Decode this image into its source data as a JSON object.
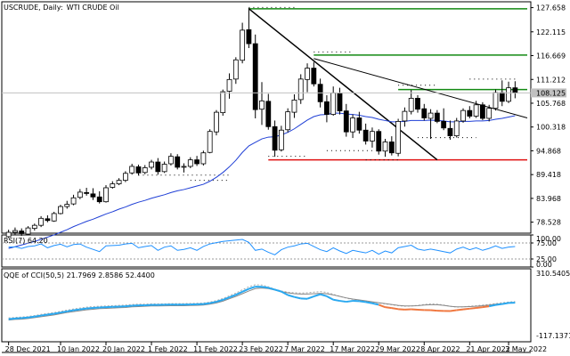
{
  "header": {
    "symbol": "USCRUDE, Daily:",
    "name": "WTI CRUDE Oil"
  },
  "price_axis": {
    "labels": [
      "127.658",
      "122.115",
      "116.669",
      "111.212",
      "105.768",
      "100.318",
      "94.868",
      "89.418",
      "83.968",
      "78.528"
    ],
    "current_price_label": "108.125"
  },
  "rsi_panel": {
    "label": "RSI(7) 64.20",
    "axis_labels": [
      "100.00",
      "75.00",
      "25.00",
      "0.00"
    ]
  },
  "qqe_panel": {
    "label": "QQE of CCI(50,5) 21.7969 2.8586 52.4400",
    "axis_labels": [
      "310.5405",
      "-117.1371"
    ]
  },
  "date_axis": {
    "labels": [
      "28 Dec 2021",
      "10 Jan 2022",
      "20 Jan 2022",
      "1 Feb 2022",
      "11 Feb 2022",
      "23 Feb 2022",
      "7 Mar 2022",
      "17 Mar 2022",
      "29 Mar 2022",
      "8 Apr 2022",
      "21 Apr 2022",
      "3 May 2022"
    ]
  },
  "colors": {
    "bullish": "#ffffff",
    "bearish": "#000000",
    "ma_line": "#1f3fd6",
    "resistance": "#138a13",
    "support": "#e01010",
    "rsi_line": "#1e90ff",
    "qqe_up": "#29a8f0",
    "qqe_down": "#f07840",
    "qqe_slow": "#888888"
  },
  "chart_data": [
    {
      "type": "candlestick",
      "title": "USCRUDE, Daily: WTI CRUDE Oil",
      "ylim": [
        76.0,
        129.0
      ],
      "y_ticks": [
        127.658,
        122.115,
        116.669,
        111.212,
        105.768,
        100.318,
        94.868,
        89.418,
        83.968,
        78.528
      ],
      "current_price": 108.125,
      "candles": [
        {
          "o": 75.2,
          "h": 76.8,
          "l": 74.9,
          "c": 76.2
        },
        {
          "o": 76.2,
          "h": 77.3,
          "l": 75.7,
          "c": 76.6
        },
        {
          "o": 76.5,
          "h": 77.1,
          "l": 75.4,
          "c": 75.9
        },
        {
          "o": 75.8,
          "h": 77.6,
          "l": 75.5,
          "c": 77.2
        },
        {
          "o": 77.1,
          "h": 78.2,
          "l": 76.6,
          "c": 77.8
        },
        {
          "o": 77.8,
          "h": 79.9,
          "l": 77.4,
          "c": 79.4
        },
        {
          "o": 79.3,
          "h": 80.1,
          "l": 78.5,
          "c": 78.9
        },
        {
          "o": 78.8,
          "h": 80.9,
          "l": 78.6,
          "c": 80.5
        },
        {
          "o": 80.5,
          "h": 82.5,
          "l": 80.3,
          "c": 82.1
        },
        {
          "o": 82.1,
          "h": 83.4,
          "l": 81.6,
          "c": 82.6
        },
        {
          "o": 82.7,
          "h": 84.8,
          "l": 82.4,
          "c": 84.1
        },
        {
          "o": 84.2,
          "h": 86.1,
          "l": 83.8,
          "c": 85.4
        },
        {
          "o": 85.3,
          "h": 86.4,
          "l": 84.6,
          "c": 85.1
        },
        {
          "o": 85.0,
          "h": 86.3,
          "l": 83.6,
          "c": 84.3
        },
        {
          "o": 84.3,
          "h": 85.6,
          "l": 82.8,
          "c": 83.2
        },
        {
          "o": 83.2,
          "h": 87.0,
          "l": 83.0,
          "c": 86.4
        },
        {
          "o": 86.5,
          "h": 87.9,
          "l": 86.2,
          "c": 87.3
        },
        {
          "o": 87.3,
          "h": 88.6,
          "l": 87.0,
          "c": 88.1
        },
        {
          "o": 88.1,
          "h": 90.2,
          "l": 87.7,
          "c": 89.7
        },
        {
          "o": 89.8,
          "h": 91.9,
          "l": 89.4,
          "c": 91.3
        },
        {
          "o": 91.2,
          "h": 91.7,
          "l": 89.2,
          "c": 89.8
        },
        {
          "o": 89.9,
          "h": 91.6,
          "l": 89.5,
          "c": 91.0
        },
        {
          "o": 91.1,
          "h": 92.8,
          "l": 90.6,
          "c": 92.3
        },
        {
          "o": 92.3,
          "h": 93.2,
          "l": 89.4,
          "c": 90.1
        },
        {
          "o": 90.1,
          "h": 92.4,
          "l": 89.8,
          "c": 91.8
        },
        {
          "o": 91.9,
          "h": 94.3,
          "l": 91.5,
          "c": 93.6
        },
        {
          "o": 93.5,
          "h": 94.1,
          "l": 90.6,
          "c": 91.1
        },
        {
          "o": 91.2,
          "h": 92.0,
          "l": 89.9,
          "c": 91.3
        },
        {
          "o": 91.3,
          "h": 93.4,
          "l": 90.9,
          "c": 92.8
        },
        {
          "o": 92.8,
          "h": 93.7,
          "l": 91.4,
          "c": 91.9
        },
        {
          "o": 91.9,
          "h": 94.9,
          "l": 91.5,
          "c": 94.4
        },
        {
          "o": 94.5,
          "h": 99.8,
          "l": 94.3,
          "c": 99.3
        },
        {
          "o": 99.2,
          "h": 104.2,
          "l": 98.4,
          "c": 103.7
        },
        {
          "o": 103.6,
          "h": 108.9,
          "l": 102.9,
          "c": 108.4
        },
        {
          "o": 108.5,
          "h": 112.6,
          "l": 106.8,
          "c": 111.2
        },
        {
          "o": 111.3,
          "h": 116.3,
          "l": 110.2,
          "c": 115.7
        },
        {
          "o": 115.6,
          "h": 124.2,
          "l": 114.9,
          "c": 122.5
        },
        {
          "o": 122.6,
          "h": 127.6,
          "l": 118.4,
          "c": 119.4
        },
        {
          "o": 119.4,
          "h": 121.5,
          "l": 102.3,
          "c": 104.3
        },
        {
          "o": 104.4,
          "h": 110.6,
          "l": 100.8,
          "c": 106.3
        },
        {
          "o": 106.2,
          "h": 107.9,
          "l": 99.7,
          "c": 100.4
        },
        {
          "o": 100.4,
          "h": 101.8,
          "l": 93.5,
          "c": 95.0
        },
        {
          "o": 95.1,
          "h": 100.6,
          "l": 94.7,
          "c": 99.6
        },
        {
          "o": 99.7,
          "h": 104.6,
          "l": 99.1,
          "c": 103.8
        },
        {
          "o": 103.7,
          "h": 107.8,
          "l": 102.4,
          "c": 106.5
        },
        {
          "o": 106.6,
          "h": 112.4,
          "l": 105.6,
          "c": 111.3
        },
        {
          "o": 111.2,
          "h": 114.9,
          "l": 108.3,
          "c": 113.8
        },
        {
          "o": 113.8,
          "h": 115.2,
          "l": 109.6,
          "c": 110.2
        },
        {
          "o": 110.1,
          "h": 111.4,
          "l": 104.8,
          "c": 106.1
        },
        {
          "o": 106.1,
          "h": 107.6,
          "l": 101.4,
          "c": 103.2
        },
        {
          "o": 103.2,
          "h": 109.6,
          "l": 102.9,
          "c": 108.1
        },
        {
          "o": 108.0,
          "h": 109.3,
          "l": 103.2,
          "c": 104.0
        },
        {
          "o": 104.0,
          "h": 105.6,
          "l": 98.1,
          "c": 99.2
        },
        {
          "o": 99.2,
          "h": 103.2,
          "l": 97.8,
          "c": 102.4
        },
        {
          "o": 102.4,
          "h": 103.8,
          "l": 98.8,
          "c": 99.6
        },
        {
          "o": 99.6,
          "h": 101.1,
          "l": 96.3,
          "c": 97.1
        },
        {
          "o": 97.1,
          "h": 100.2,
          "l": 95.6,
          "c": 99.3
        },
        {
          "o": 99.3,
          "h": 99.8,
          "l": 94.0,
          "c": 94.8
        },
        {
          "o": 94.8,
          "h": 97.6,
          "l": 93.5,
          "c": 96.9
        },
        {
          "o": 96.9,
          "h": 98.2,
          "l": 93.8,
          "c": 94.4
        },
        {
          "o": 94.3,
          "h": 102.2,
          "l": 93.6,
          "c": 101.6
        },
        {
          "o": 101.7,
          "h": 104.8,
          "l": 100.4,
          "c": 103.9
        },
        {
          "o": 103.9,
          "h": 108.8,
          "l": 103.2,
          "c": 106.9
        },
        {
          "o": 106.9,
          "h": 107.6,
          "l": 103.6,
          "c": 104.4
        },
        {
          "o": 104.5,
          "h": 105.6,
          "l": 101.8,
          "c": 102.4
        },
        {
          "o": 102.3,
          "h": 104.4,
          "l": 97.6,
          "c": 103.5
        },
        {
          "o": 103.5,
          "h": 104.2,
          "l": 101.2,
          "c": 101.6
        },
        {
          "o": 101.6,
          "h": 104.6,
          "l": 99.6,
          "c": 100.1
        },
        {
          "o": 100.0,
          "h": 101.8,
          "l": 97.4,
          "c": 98.3
        },
        {
          "o": 98.3,
          "h": 102.4,
          "l": 97.9,
          "c": 101.7
        },
        {
          "o": 101.7,
          "h": 104.6,
          "l": 101.3,
          "c": 104.1
        },
        {
          "o": 104.1,
          "h": 105.1,
          "l": 102.3,
          "c": 102.8
        },
        {
          "o": 102.8,
          "h": 106.3,
          "l": 102.4,
          "c": 105.4
        },
        {
          "o": 105.4,
          "h": 106.0,
          "l": 101.9,
          "c": 102.3
        },
        {
          "o": 102.3,
          "h": 105.4,
          "l": 101.6,
          "c": 104.6
        },
        {
          "o": 104.6,
          "h": 108.9,
          "l": 104.1,
          "c": 108.2
        },
        {
          "o": 108.2,
          "h": 111.0,
          "l": 105.1,
          "c": 106.2
        },
        {
          "o": 106.2,
          "h": 110.7,
          "l": 105.8,
          "c": 109.3
        },
        {
          "o": 109.3,
          "h": 110.8,
          "l": 106.9,
          "c": 108.1
        }
      ],
      "moving_average": [
        72.5,
        72.9,
        73.3,
        73.7,
        74.1,
        74.6,
        75.1,
        75.6,
        76.2,
        76.8,
        77.5,
        78.1,
        78.7,
        79.2,
        79.8,
        80.4,
        80.9,
        81.5,
        82.0,
        82.6,
        83.1,
        83.5,
        84.0,
        84.4,
        84.8,
        85.3,
        85.7,
        86.0,
        86.4,
        86.8,
        87.2,
        87.9,
        88.8,
        89.9,
        91.2,
        92.7,
        94.5,
        96.0,
        96.8,
        97.6,
        98.0,
        98.1,
        98.5,
        99.1,
        99.9,
        100.9,
        101.9,
        102.7,
        103.1,
        103.2,
        103.5,
        103.5,
        103.3,
        103.2,
        103.0,
        102.7,
        102.5,
        102.1,
        101.8,
        101.5,
        101.5,
        101.6,
        101.8,
        101.8,
        101.8,
        101.9,
        101.8,
        101.7,
        101.5,
        101.5,
        101.6,
        101.6,
        101.7,
        101.7,
        101.8,
        102.1,
        102.3,
        102.6,
        102.9
      ],
      "lines": {
        "resistance_1": 127.4,
        "resistance_2": 116.8,
        "resistance_3": 108.9,
        "support": 92.8,
        "upper_dotted": [
          127.7,
          117.5,
          109.9,
          111.3
        ],
        "lower_dotted": [
          89.3,
          88.1,
          93.6,
          94.9,
          92.8,
          97.9
        ]
      }
    },
    {
      "type": "line",
      "title": "RSI(7) 64.20",
      "ylim": [
        0,
        100
      ],
      "y_ticks": [
        100,
        75,
        25,
        0
      ],
      "levels": [
        75,
        25
      ],
      "values": [
        62,
        63,
        58,
        64,
        66,
        72,
        60,
        67,
        71,
        63,
        70,
        72,
        62,
        55,
        48,
        66,
        67,
        68,
        72,
        74,
        60,
        64,
        67,
        52,
        62,
        66,
        52,
        55,
        60,
        52,
        64,
        72,
        76,
        80,
        82,
        84,
        86,
        77,
        52,
        56,
        46,
        38,
        54,
        62,
        66,
        72,
        74,
        64,
        54,
        48,
        60,
        50,
        42,
        52,
        48,
        44,
        52,
        40,
        50,
        44,
        60,
        64,
        68,
        56,
        52,
        56,
        52,
        48,
        44,
        56,
        62,
        54,
        60,
        52,
        58,
        66,
        58,
        62,
        64
      ]
    },
    {
      "type": "line",
      "title": "QQE of CCI(50,5) 21.7969 2.8586 52.4400",
      "ylim": [
        -117.1371,
        310.5405
      ],
      "y_ticks": [
        310.5405,
        -117.1371
      ],
      "series": [
        {
          "values": [
            18,
            22,
            24,
            28,
            34,
            42,
            48,
            54,
            62,
            70,
            78,
            84,
            90,
            94,
            96,
            98,
            100,
            102,
            104,
            108,
            110,
            110,
            112,
            112,
            112,
            114,
            114,
            114,
            115,
            116,
            118,
            124,
            134,
            148,
            166,
            184,
            206,
            226,
            240,
            238,
            226,
            210,
            198,
            190,
            186,
            184,
            186,
            190,
            194,
            188,
            176,
            162,
            150,
            142,
            136,
            130,
            124,
            118,
            112,
            106,
            100,
            96,
            98,
            102,
            108,
            112,
            110,
            104,
            96,
            90,
            92,
            96,
            100,
            104,
            108,
            114,
            120,
            124,
            128
          ]
        },
        {
          "values": [
            4,
            8,
            10,
            14,
            20,
            26,
            32,
            38,
            46,
            54,
            60,
            66,
            72,
            76,
            80,
            82,
            84,
            86,
            88,
            92,
            94,
            96,
            98,
            98,
            99,
            100,
            100,
            100,
            101,
            102,
            104,
            110,
            118,
            130,
            146,
            162,
            180,
            198,
            214,
            218,
            214,
            204,
            194,
            186,
            180,
            178,
            178,
            180,
            182,
            180,
            172,
            162,
            152,
            144,
            138,
            132,
            126,
            120,
            114,
            108,
            102,
            98,
            98,
            100,
            104,
            106,
            106,
            102,
            96,
            92,
            92,
            94,
            96,
            100,
            104,
            110,
            114,
            118,
            122
          ]
        },
        {
          "values": [
            10,
            14,
            17,
            21,
            27,
            34,
            40,
            46,
            54,
            62,
            69,
            75,
            81,
            85,
            88,
            90,
            92,
            94,
            96,
            100,
            102,
            103,
            105,
            105,
            106,
            107,
            107,
            107,
            108,
            109,
            111,
            117,
            126,
            139,
            156,
            173,
            193,
            212,
            227,
            226,
            219,
            207,
            194,
            171,
            158,
            148,
            146,
            162,
            176,
            163,
            140,
            132,
            126,
            132,
            130,
            124,
            116,
            106,
            90,
            84,
            77,
            74,
            76,
            73,
            71,
            70,
            66,
            65,
            64,
            70,
            75,
            80,
            85,
            90,
            96,
            105,
            111,
            118,
            120
          ]
        }
      ]
    }
  ]
}
